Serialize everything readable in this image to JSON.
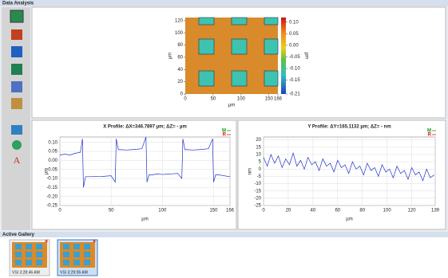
{
  "window_title": "Data Analysis",
  "toolbar_letter": "A",
  "map": {
    "xlim": [
      0,
      166
    ],
    "ylim": [
      0,
      125
    ],
    "xticks": [
      0,
      50,
      100,
      150,
      166
    ],
    "yticks": [
      0,
      20,
      40,
      60,
      80,
      100,
      120
    ],
    "xlabel": "µm",
    "ylabel": "µm",
    "colorbar": {
      "lim": [
        -0.21,
        0.12
      ],
      "label": "µm",
      "ticks": [
        {
          "value": 0.1,
          "label": "0.10"
        },
        {
          "value": 0.05,
          "label": "0.05"
        },
        {
          "value": 0,
          "label": "0.00"
        },
        {
          "value": -0.05,
          "label": "-0.05"
        },
        {
          "value": -0.1,
          "label": "-0.10"
        },
        {
          "value": -0.15,
          "label": "-0.15"
        },
        {
          "value": -0.21,
          "label": "-0.21"
        }
      ]
    }
  },
  "x_profile": {
    "type": "line",
    "title": "X Profile: ΔX=346.7897 µm; ΔZ= - µm",
    "xlabel": "µm",
    "ylabel": "µm",
    "legend": [
      {
        "name": "M",
        "color": "#119911"
      },
      {
        "name": "R",
        "color": "#dd1111"
      }
    ],
    "xlim": [
      0,
      166
    ],
    "xticks": [
      0,
      50,
      100,
      150,
      166
    ],
    "ylim": [
      -0.25,
      0.13
    ],
    "yticks": [
      {
        "value": 0.1,
        "label": "0.10"
      },
      {
        "value": 0.05,
        "label": "0.05"
      },
      {
        "value": 0,
        "label": "0.00"
      },
      {
        "value": -0.05,
        "label": "-0.05"
      },
      {
        "value": -0.1,
        "label": "-0.10"
      },
      {
        "value": -0.15,
        "label": "-0.15"
      },
      {
        "value": -0.2,
        "label": "-0.20"
      },
      {
        "value": -0.25,
        "label": "-0.25"
      }
    ],
    "x": [
      0,
      5,
      10,
      15,
      20,
      22,
      23,
      25,
      30,
      35,
      40,
      45,
      50,
      54,
      55,
      57,
      60,
      65,
      70,
      75,
      80,
      84,
      85,
      87,
      90,
      95,
      100,
      105,
      110,
      115,
      119,
      120,
      122,
      125,
      130,
      135,
      140,
      145,
      149,
      150,
      152,
      155,
      160,
      166
    ],
    "series": [
      {
        "name": "M",
        "color": "#2233cc",
        "values": [
          0.03,
          0.035,
          0.03,
          0.04,
          0.045,
          0.12,
          -0.15,
          -0.09,
          -0.09,
          -0.088,
          -0.09,
          -0.087,
          -0.085,
          -0.12,
          0.12,
          0.06,
          0.06,
          0.058,
          0.06,
          0.062,
          0.065,
          0.13,
          -0.12,
          -0.08,
          -0.08,
          -0.075,
          -0.078,
          -0.076,
          -0.074,
          -0.072,
          -0.1,
          0.12,
          0.06,
          0.06,
          0.058,
          0.06,
          0.062,
          0.065,
          0.12,
          -0.12,
          -0.08,
          -0.08,
          -0.085,
          -0.09
        ]
      }
    ]
  },
  "y_profile": {
    "type": "line",
    "title": "Y Profile: ΔY=165.1132 µm; ΔZ= - nm",
    "xlabel": "µm",
    "ylabel": "nm",
    "legend": [
      {
        "name": "M",
        "color": "#119911"
      },
      {
        "name": "R",
        "color": "#dd1111"
      }
    ],
    "xlim": [
      0,
      139
    ],
    "xticks": [
      0,
      20,
      40,
      60,
      80,
      100,
      120,
      139
    ],
    "ylim": [
      -25,
      22
    ],
    "yticks": [
      20,
      15,
      10,
      5,
      0,
      -5,
      -10,
      -15,
      -20,
      -25
    ],
    "x": [
      0,
      3,
      6,
      9,
      12,
      15,
      18,
      21,
      24,
      27,
      30,
      33,
      36,
      39,
      42,
      45,
      48,
      51,
      54,
      57,
      60,
      63,
      66,
      69,
      72,
      75,
      78,
      81,
      84,
      87,
      90,
      93,
      96,
      99,
      102,
      105,
      108,
      111,
      114,
      117,
      120,
      123,
      126,
      129,
      132,
      135,
      138
    ],
    "series": [
      {
        "name": "M",
        "color": "#2233cc",
        "values": [
          8,
          2,
          10,
          4,
          9,
          1,
          7,
          3,
          11,
          2,
          6,
          0,
          8,
          3,
          5,
          -1,
          7,
          2,
          4,
          -2,
          6,
          1,
          3,
          -3,
          5,
          0,
          2,
          -4,
          4,
          -1,
          1,
          -5,
          3,
          -2,
          0,
          -6,
          2,
          -3,
          -1,
          -7,
          1,
          -4,
          -2,
          -8,
          0,
          -6,
          -4
        ]
      }
    ]
  },
  "gallery": {
    "title": "Active Gallery",
    "items": [
      "VSI 3:28:46 AM",
      "VSI 3:29:06 AM"
    ]
  }
}
